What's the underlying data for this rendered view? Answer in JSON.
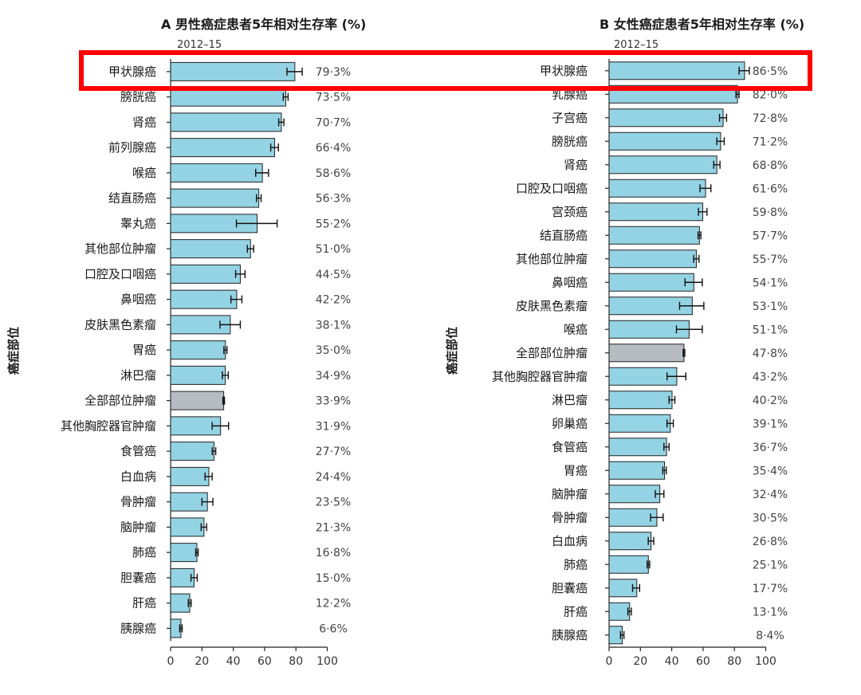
{
  "colors": {
    "bar": "#94d3e4",
    "bar_all": "#b7bcc3",
    "highlight": "#ff0000"
  },
  "chart_data": [
    {
      "type": "bar",
      "orientation": "horizontal",
      "panel_letter": "A",
      "title": "男性癌症患者5年相对生存率 (%)",
      "period": "2012–15",
      "ylabel": "癌症部位",
      "xlim": [
        0,
        100
      ],
      "xticks": [
        0,
        20,
        40,
        60,
        80,
        100
      ],
      "highlight_category": "甲状腺癌",
      "categories": [
        "甲状腺癌",
        "膀胱癌",
        "肾癌",
        "前列腺癌",
        "喉癌",
        "结直肠癌",
        "睾丸癌",
        "其他部位肿瘤",
        "口腔及口咽癌",
        "鼻咽癌",
        "皮肤黑色素瘤",
        "胃癌",
        "淋巴瘤",
        "全部部位肿瘤",
        "其他胸腔器官肿瘤",
        "食管癌",
        "白血病",
        "骨肿瘤",
        "脑肿瘤",
        "肺癌",
        "胆囊癌",
        "肝癌",
        "胰腺癌"
      ],
      "values": [
        79.3,
        73.5,
        70.7,
        66.4,
        58.6,
        56.3,
        55.2,
        51.0,
        44.5,
        42.2,
        38.1,
        35.0,
        34.9,
        33.9,
        31.9,
        27.7,
        24.4,
        23.5,
        21.3,
        16.8,
        15.0,
        12.2,
        6.6
      ],
      "value_labels": [
        "79·3%",
        "73·5%",
        "70·7%",
        "66·4%",
        "58·6%",
        "56·3%",
        "55·2%",
        "51·0%",
        "44·5%",
        "42·2%",
        "38·1%",
        "35·0%",
        "34·9%",
        "33·9%",
        "31·9%",
        "27·7%",
        "24·4%",
        "23·5%",
        "21·3%",
        "16·8%",
        "15·0%",
        "12·2%",
        "6·6%"
      ],
      "ci_low": [
        74.3,
        71.9,
        69.0,
        63.9,
        54.3,
        54.8,
        42.0,
        49.0,
        41.5,
        38.5,
        31.5,
        34.0,
        33.0,
        33.4,
        26.5,
        26.6,
        22.0,
        20.0,
        19.5,
        16.0,
        13.0,
        11.3,
        5.8
      ],
      "ci_high": [
        84.0,
        75.0,
        72.3,
        68.8,
        62.5,
        57.8,
        68.0,
        53.0,
        47.5,
        45.5,
        44.5,
        36.0,
        36.8,
        34.4,
        37.0,
        28.8,
        26.5,
        27.0,
        23.0,
        17.6,
        17.0,
        13.1,
        7.4
      ]
    },
    {
      "type": "bar",
      "orientation": "horizontal",
      "panel_letter": "B",
      "title": "女性癌症患者5年相对生存率 (%)",
      "period": "2012–15",
      "ylabel": "癌症部位",
      "xlim": [
        0,
        100
      ],
      "xticks": [
        0,
        20,
        40,
        60,
        80,
        100
      ],
      "highlight_category": "甲状腺癌",
      "categories": [
        "甲状腺癌",
        "乳腺癌",
        "子宫癌",
        "膀胱癌",
        "肾癌",
        "口腔及口咽癌",
        "宫颈癌",
        "结直肠癌",
        "其他部位肿瘤",
        "鼻咽癌",
        "皮肤黑色素瘤",
        "喉癌",
        "全部部位肿瘤",
        "其他胸腔器官肿瘤",
        "淋巴瘤",
        "卵巢癌",
        "食管癌",
        "胃癌",
        "脑肿瘤",
        "骨肿瘤",
        "白血病",
        "肺癌",
        "胆囊癌",
        "肝癌",
        "胰腺癌"
      ],
      "values": [
        86.5,
        82.0,
        72.8,
        71.2,
        68.8,
        61.6,
        59.8,
        57.7,
        55.7,
        54.1,
        53.1,
        51.1,
        47.8,
        43.2,
        40.2,
        39.1,
        36.7,
        35.4,
        32.4,
        30.5,
        26.8,
        25.1,
        17.7,
        13.1,
        8.4
      ],
      "value_labels": [
        "86·5%",
        "82·0%",
        "72·8%",
        "71·2%",
        "68·8%",
        "61·6%",
        "59·8%",
        "57·7%",
        "55·7%",
        "54·1%",
        "53·1%",
        "51·1%",
        "47·8%",
        "43·2%",
        "40·2%",
        "39·1%",
        "36·7%",
        "35·4%",
        "32·4%",
        "30·5%",
        "26·8%",
        "25·1%",
        "17·7%",
        "13·1%",
        "8·4%"
      ],
      "ci_low": [
        83.0,
        81.0,
        70.5,
        68.8,
        66.8,
        58.0,
        57.0,
        56.8,
        54.0,
        48.5,
        45.0,
        43.0,
        47.3,
        37.0,
        38.3,
        37.0,
        35.0,
        34.3,
        29.5,
        26.5,
        25.0,
        24.3,
        15.0,
        12.0,
        7.3
      ],
      "ci_high": [
        89.5,
        83.0,
        75.0,
        73.5,
        70.8,
        65.0,
        62.5,
        58.6,
        57.4,
        59.5,
        60.5,
        59.5,
        48.3,
        49.0,
        42.0,
        41.0,
        38.3,
        36.5,
        35.0,
        34.5,
        28.5,
        25.9,
        19.5,
        14.2,
        9.5
      ]
    }
  ]
}
